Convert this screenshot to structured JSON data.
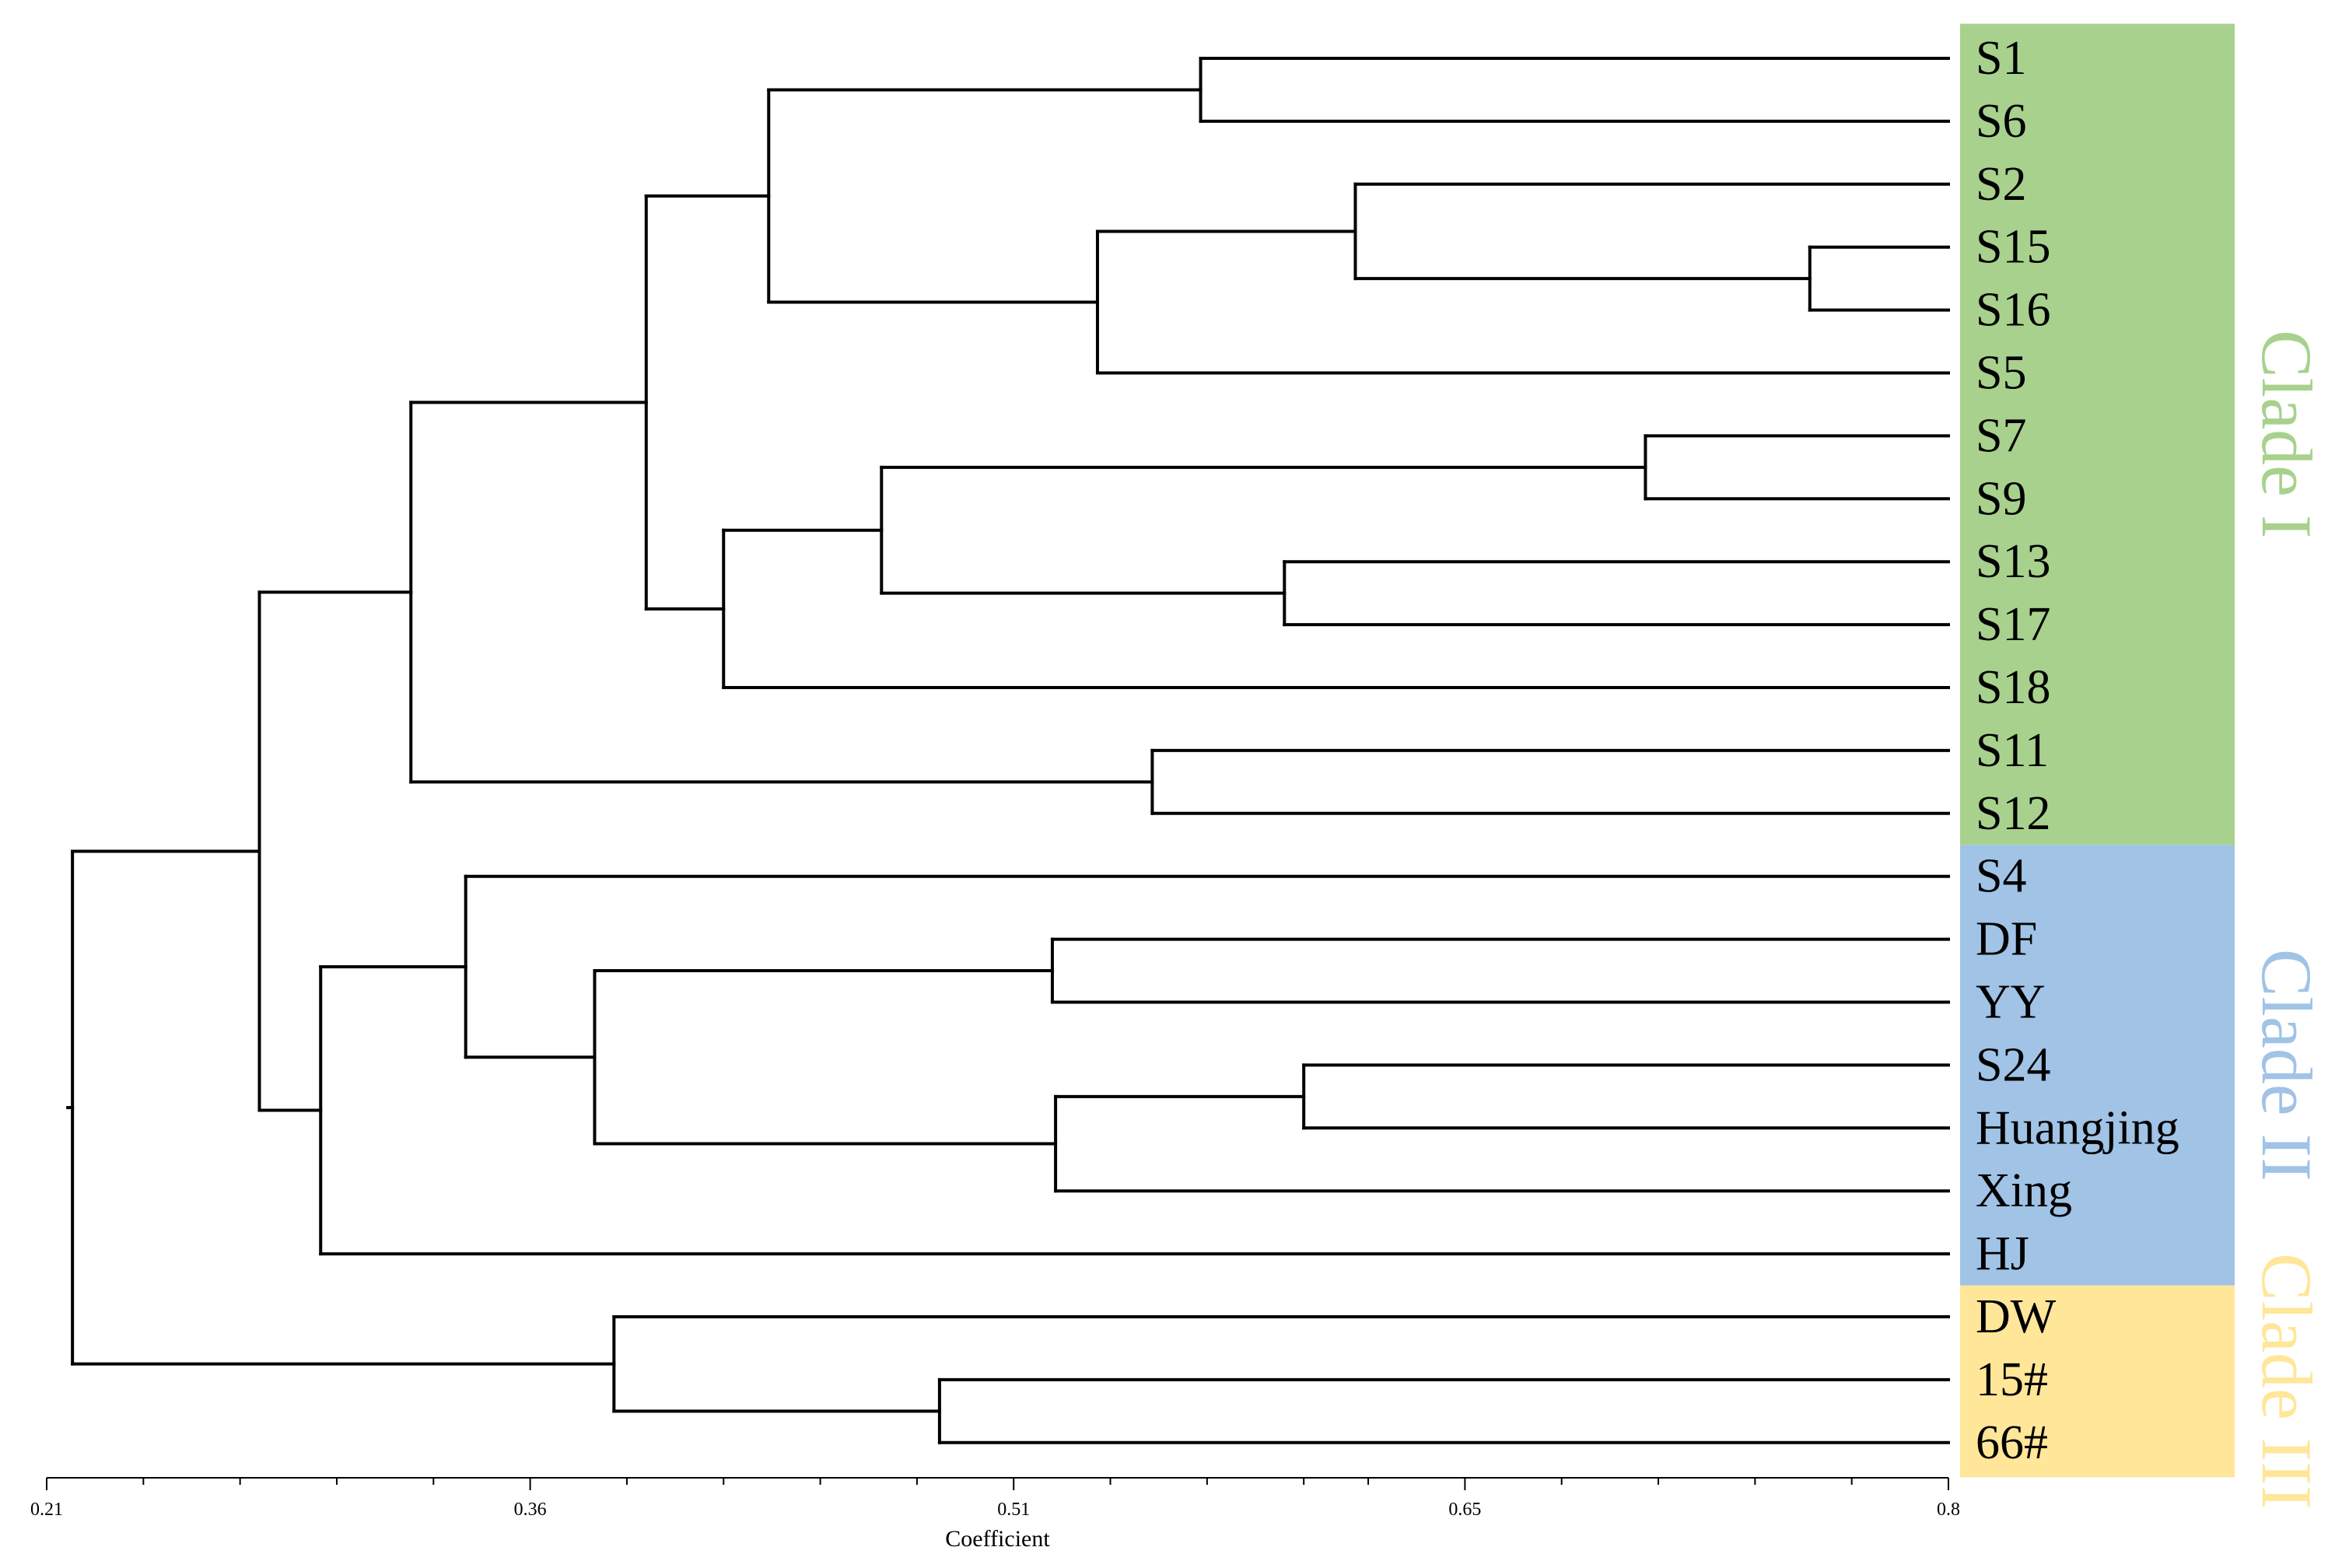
{
  "chart_data": {
    "type": "dendrogram",
    "title": "",
    "xlabel": "Coefficient",
    "ylabel": "",
    "xlim": [
      0.21,
      0.8
    ],
    "ticks": [
      0.21,
      0.36,
      0.51,
      0.65,
      0.8
    ],
    "tick_labels": [
      "0.21",
      "0.36",
      "0.51",
      "0.65",
      "0.8"
    ],
    "minor_ticks": [
      0.24,
      0.27,
      0.3,
      0.33,
      0.39,
      0.42,
      0.45,
      0.48,
      0.54,
      0.57,
      0.6,
      0.62,
      0.68,
      0.71,
      0.74,
      0.77
    ],
    "leaves": [
      "S1",
      "S6",
      "S2",
      "S15",
      "S16",
      "S5",
      "S7",
      "S9",
      "S13",
      "S17",
      "S18",
      "S11",
      "S12",
      "S4",
      "DF",
      "YY",
      "S24",
      "Huangjing",
      "Xing",
      "HJ",
      "DW",
      "15#",
      "66#"
    ],
    "merges": [
      {
        "id": "A",
        "children": [
          "S1",
          "S6"
        ],
        "coef": 0.568
      },
      {
        "id": "B",
        "children": [
          "S15",
          "S16"
        ],
        "coef": 0.757
      },
      {
        "id": "C",
        "children": [
          "S2",
          "B"
        ],
        "coef": 0.616
      },
      {
        "id": "D",
        "children": [
          "C",
          "S5"
        ],
        "coef": 0.536
      },
      {
        "id": "E",
        "children": [
          "A",
          "D"
        ],
        "coef": 0.434
      },
      {
        "id": "F",
        "children": [
          "S7",
          "S9"
        ],
        "coef": 0.706
      },
      {
        "id": "G",
        "children": [
          "S13",
          "S17"
        ],
        "coef": 0.594
      },
      {
        "id": "H",
        "children": [
          "F",
          "G"
        ],
        "coef": 0.469
      },
      {
        "id": "I",
        "children": [
          "H",
          "S18"
        ],
        "coef": 0.42
      },
      {
        "id": "J",
        "children": [
          "E",
          "I"
        ],
        "coef": 0.396
      },
      {
        "id": "K",
        "children": [
          "S11",
          "S12"
        ],
        "coef": 0.553
      },
      {
        "id": "L",
        "children": [
          "J",
          "K"
        ],
        "coef": 0.323
      },
      {
        "id": "M",
        "children": [
          "DF",
          "YY"
        ],
        "coef": 0.522
      },
      {
        "id": "N",
        "children": [
          "S24",
          "Huangjing"
        ],
        "coef": 0.6
      },
      {
        "id": "O",
        "children": [
          "N",
          "Xing"
        ],
        "coef": 0.523
      },
      {
        "id": "P",
        "children": [
          "M",
          "O"
        ],
        "coef": 0.38
      },
      {
        "id": "Q",
        "children": [
          "S4",
          "P"
        ],
        "coef": 0.34
      },
      {
        "id": "R",
        "children": [
          "Q",
          "HJ"
        ],
        "coef": 0.295
      },
      {
        "id": "S",
        "children": [
          "L",
          "R"
        ],
        "coef": 0.276
      },
      {
        "id": "T",
        "children": [
          "15#",
          "66#"
        ],
        "coef": 0.487
      },
      {
        "id": "U",
        "children": [
          "DW",
          "T"
        ],
        "coef": 0.386
      },
      {
        "id": "V",
        "children": [
          "S",
          "U"
        ],
        "coef": 0.218
      }
    ],
    "clades": [
      {
        "name": "Clade I",
        "first_leaf": "S1",
        "last_leaf": "S12",
        "color": "#a8d18d"
      },
      {
        "name": "Clade II",
        "first_leaf": "S4",
        "last_leaf": "HJ",
        "color": "#a0c3e6"
      },
      {
        "name": "Clade III",
        "first_leaf": "DW",
        "last_leaf": "66#",
        "color": "#ffe699"
      }
    ]
  }
}
